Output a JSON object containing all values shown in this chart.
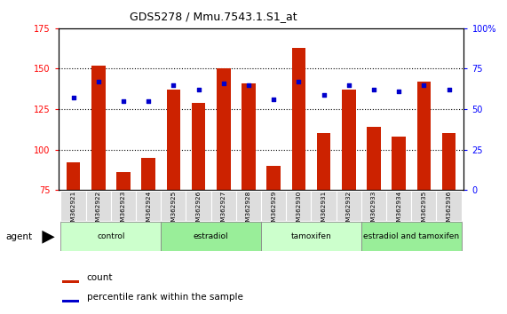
{
  "title": "GDS5278 / Mmu.7543.1.S1_at",
  "samples": [
    "GSM362921",
    "GSM362922",
    "GSM362923",
    "GSM362924",
    "GSM362925",
    "GSM362926",
    "GSM362927",
    "GSM362928",
    "GSM362929",
    "GSM362930",
    "GSM362931",
    "GSM362932",
    "GSM362933",
    "GSM362934",
    "GSM362935",
    "GSM362936"
  ],
  "counts": [
    92,
    152,
    86,
    95,
    137,
    129,
    150,
    141,
    90,
    163,
    110,
    137,
    114,
    108,
    142,
    110
  ],
  "percentiles": [
    57,
    67,
    55,
    55,
    65,
    62,
    66,
    65,
    56,
    67,
    59,
    65,
    62,
    61,
    65,
    62
  ],
  "groups": [
    {
      "label": "control",
      "start": 0,
      "end": 4,
      "color": "#ccffcc"
    },
    {
      "label": "estradiol",
      "start": 4,
      "end": 8,
      "color": "#99ee99"
    },
    {
      "label": "tamoxifen",
      "start": 8,
      "end": 12,
      "color": "#ccffcc"
    },
    {
      "label": "estradiol and tamoxifen",
      "start": 12,
      "end": 16,
      "color": "#99ee99"
    }
  ],
  "bar_color": "#cc2200",
  "dot_color": "#0000cc",
  "ylim_left": [
    75,
    175
  ],
  "ylim_right": [
    0,
    100
  ],
  "yticks_left": [
    75,
    100,
    125,
    150,
    175
  ],
  "yticks_right": [
    0,
    25,
    50,
    75,
    100
  ],
  "ytick_labels_right": [
    "0",
    "25",
    "50",
    "75",
    "100%"
  ],
  "grid_values": [
    100,
    125,
    150
  ],
  "bar_width": 0.55,
  "background_color": "#ffffff",
  "agent_label": "agent",
  "legend_count_label": "count",
  "legend_percentile_label": "percentile rank within the sample"
}
